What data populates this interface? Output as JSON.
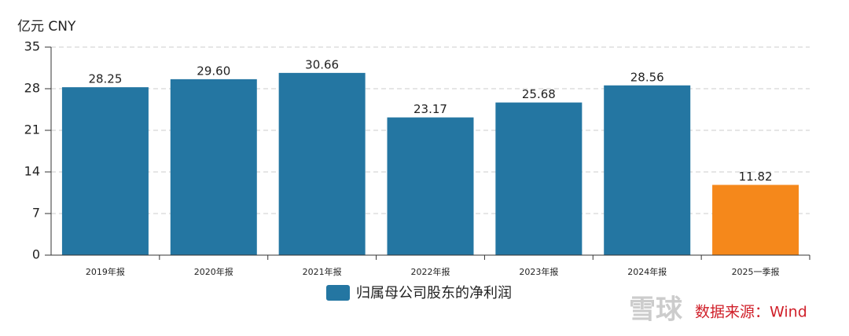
{
  "chart_data": {
    "type": "bar",
    "y_label": "亿元  CNY",
    "categories": [
      "2019年报",
      "2020年报",
      "2021年报",
      "2022年报",
      "2023年报",
      "2024年报",
      "2025一季报"
    ],
    "series": [
      {
        "name": "归属母公司股东的净利润",
        "color": "#2476a2",
        "bar_colors": [
          "#2476a2",
          "#2476a2",
          "#2476a2",
          "#2476a2",
          "#2476a2",
          "#2476a2",
          "#f5881b"
        ],
        "values": [
          28.25,
          29.6,
          30.66,
          23.17,
          25.68,
          28.56,
          11.82
        ],
        "value_labels": [
          "28.25",
          "29.60",
          "30.66",
          "23.17",
          "25.68",
          "28.56",
          "11.82"
        ]
      }
    ],
    "ylim": [
      0,
      35
    ],
    "yticks": [
      0,
      7,
      14,
      21,
      28,
      35
    ],
    "grid": true,
    "source": "数据来源：Wind",
    "watermark": "雪球"
  }
}
